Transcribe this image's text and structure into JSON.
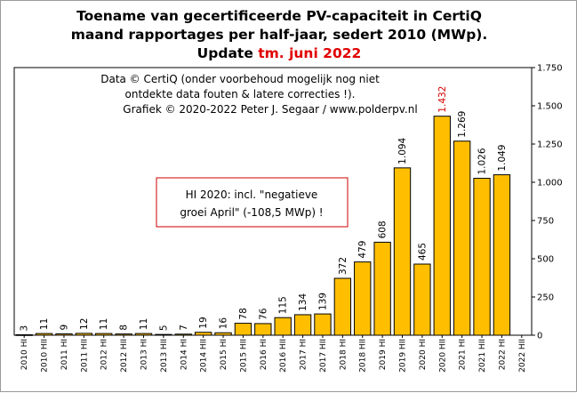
{
  "title": {
    "line1": "Toename van gecertificeerde PV-capaciteit in CertiQ",
    "line2": "maand rapportages per half-jaar, sedert 2010 (MWp).",
    "line3_prefix": "Update ",
    "line3_accent": "tm. juni 2022"
  },
  "credits": {
    "line1": "Data © CertiQ (onder voorbehoud mogelijk nog niet",
    "line2": "ontdekte data fouten & latere correcties !).",
    "line3": "Grafiek © 2020-2022 Peter J. Segaar / www.polderpv.nl"
  },
  "note": {
    "line1": "HI 2020: incl. \"negatieve",
    "line2": "groei April\"  (-108,5 MWp) !"
  },
  "colors": {
    "bar_fill": "#ffbf00",
    "bar_stroke": "#000000",
    "highlight_label": "#d40000",
    "title_accent": "#e10000",
    "note_border": "#cc0000"
  },
  "chart_data": {
    "type": "bar",
    "title": "Toename van gecertificeerde PV-capaciteit in CertiQ maand rapportages per half-jaar, sedert 2010 (MWp). Update tm. juni 2022",
    "categories": [
      "2010 HI",
      "2010 HII",
      "2011 HI",
      "2011 HII",
      "2012 HI",
      "2012 HII",
      "2013 HI",
      "2013 HII",
      "2014 HI",
      "2014 HII",
      "2015 HI",
      "2015 HII",
      "2016 HI",
      "2016 HII",
      "2017 HI",
      "2017 HII",
      "2018 HI",
      "2018 HII",
      "2019 HI",
      "2019 HII",
      "2020 HI",
      "2020 HII",
      "2021 HI",
      "2021 HII",
      "2022 HI",
      "2022 HII"
    ],
    "values": [
      3,
      11,
      9,
      12,
      11,
      8,
      11,
      5,
      7,
      19,
      16,
      78,
      76,
      115,
      134,
      139,
      372,
      479,
      608,
      1094,
      465,
      1432,
      1269,
      1026,
      1049,
      null
    ],
    "data_labels": [
      "3",
      "11",
      "9",
      "12",
      "11",
      "8",
      "11",
      "5",
      "7",
      "19",
      "16",
      "78",
      "76",
      "115",
      "134",
      "139",
      "372",
      "479",
      "608",
      "1.094",
      "465",
      "1.432",
      "1.269",
      "1.026",
      "1.049",
      ""
    ],
    "highlight_index": 21,
    "ylim": [
      0,
      1750
    ],
    "yticks": [
      0,
      250,
      500,
      750,
      1000,
      1250,
      1500,
      1750
    ],
    "ytick_labels": [
      "0",
      "250",
      "500",
      "750",
      "1.000",
      "1.250",
      "1.500",
      "1.750"
    ],
    "y_axis_side": "right",
    "grid": false,
    "xlabel": "",
    "ylabel": ""
  }
}
